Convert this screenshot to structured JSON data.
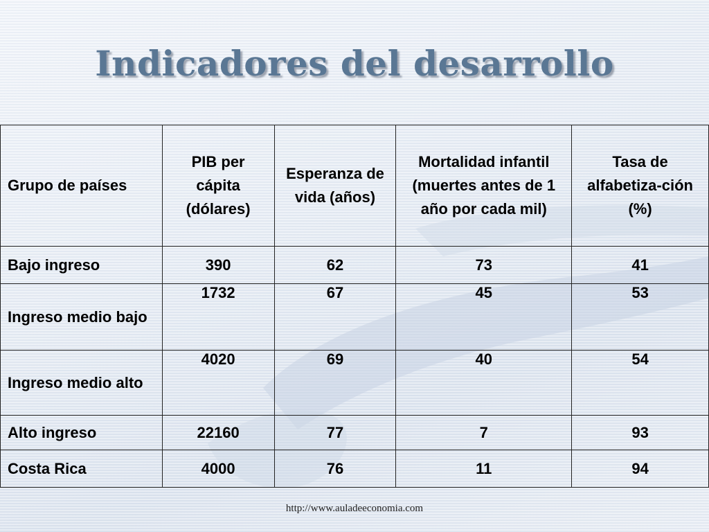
{
  "slide": {
    "title": "Indicadores del desarrollo",
    "footer_url": "http://www.auladeeconomia.com"
  },
  "table": {
    "headers": [
      "Grupo de países",
      "PIB per cápita (dólares)",
      "Esperanza de vida (años)",
      "Mortalidad infantil (muertes antes de 1 año por cada mil)",
      "Tasa de alfabetiza-ción (%)"
    ],
    "rows": [
      {
        "group": "Bajo ingreso",
        "pib": "390",
        "esperanza": "62",
        "mortalidad": "73",
        "alfabetizacion": "41"
      },
      {
        "group": "Ingreso medio bajo",
        "pib": "1732",
        "esperanza": "67",
        "mortalidad": "45",
        "alfabetizacion": "53"
      },
      {
        "group": "Ingreso medio alto",
        "pib": "4020",
        "esperanza": "69",
        "mortalidad": "40",
        "alfabetizacion": "54"
      },
      {
        "group": "Alto ingreso",
        "pib": "22160",
        "esperanza": "77",
        "mortalidad": "7",
        "alfabetizacion": "93"
      },
      {
        "group": "Costa Rica",
        "pib": "4000",
        "esperanza": "76",
        "mortalidad": "11",
        "alfabetizacion": "94"
      }
    ]
  },
  "colors": {
    "title": "#5a7794",
    "background": "#dfe6f0",
    "border": "#222222"
  }
}
